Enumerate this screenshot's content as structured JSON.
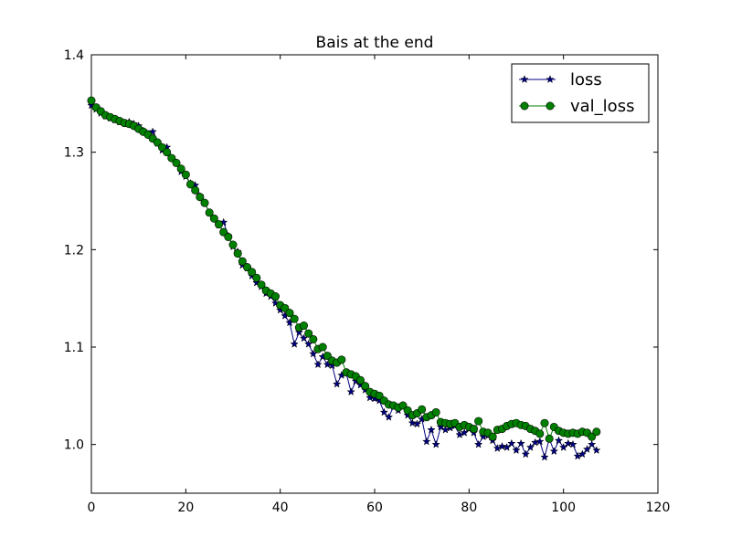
{
  "chart_data": {
    "type": "line",
    "title": "Bais at the end",
    "xlabel": "",
    "ylabel": "",
    "xlim": [
      0,
      120
    ],
    "ylim": [
      0.95,
      1.4
    ],
    "xticks": [
      0,
      20,
      40,
      60,
      80,
      100,
      120
    ],
    "xtick_labels": [
      "0",
      "20",
      "40",
      "60",
      "80",
      "100",
      "120"
    ],
    "yticks": [
      1.0,
      1.1,
      1.2,
      1.3,
      1.4
    ],
    "ytick_labels": [
      "1.0",
      "1.1",
      "1.2",
      "1.3",
      "1.4"
    ],
    "grid": false,
    "legend_position": "top-right",
    "series": [
      {
        "name": "loss",
        "color": "#000080",
        "marker": "star",
        "x": [
          0,
          1,
          2,
          3,
          4,
          5,
          6,
          7,
          8,
          9,
          10,
          11,
          12,
          13,
          14,
          15,
          16,
          17,
          18,
          19,
          20,
          21,
          22,
          23,
          24,
          25,
          26,
          27,
          28,
          29,
          30,
          31,
          32,
          33,
          34,
          35,
          36,
          37,
          38,
          39,
          40,
          41,
          42,
          43,
          44,
          45,
          46,
          47,
          48,
          49,
          50,
          51,
          52,
          53,
          54,
          55,
          56,
          57,
          58,
          59,
          60,
          61,
          62,
          63,
          64,
          65,
          66,
          67,
          68,
          69,
          70,
          71,
          72,
          73,
          74,
          75,
          76,
          77,
          78,
          79,
          80,
          81,
          82,
          83,
          84,
          85,
          86,
          87,
          88,
          89,
          90,
          91,
          92,
          93,
          94,
          95,
          96,
          97,
          98,
          99,
          100,
          101,
          102,
          103,
          104,
          105,
          106,
          107
        ],
        "y": [
          1.348,
          1.344,
          1.34,
          1.337,
          1.335,
          1.333,
          1.331,
          1.33,
          1.331,
          1.329,
          1.327,
          1.322,
          1.319,
          1.321,
          1.309,
          1.302,
          1.305,
          1.294,
          1.289,
          1.28,
          1.275,
          1.268,
          1.266,
          1.255,
          1.248,
          1.238,
          1.232,
          1.225,
          1.228,
          1.214,
          1.203,
          1.198,
          1.184,
          1.181,
          1.173,
          1.166,
          1.162,
          1.155,
          1.152,
          1.145,
          1.138,
          1.132,
          1.125,
          1.103,
          1.115,
          1.109,
          1.103,
          1.093,
          1.082,
          1.09,
          1.082,
          1.081,
          1.062,
          1.071,
          1.073,
          1.054,
          1.065,
          1.061,
          1.056,
          1.048,
          1.047,
          1.045,
          1.033,
          1.028,
          1.039,
          1.035,
          1.04,
          1.03,
          1.022,
          1.021,
          1.026,
          1.003,
          1.015,
          1.0,
          1.018,
          1.015,
          1.017,
          1.019,
          1.01,
          1.012,
          1.016,
          1.012,
          1.0,
          1.008,
          1.009,
          1.004,
          0.996,
          0.998,
          0.997,
          1.001,
          0.994,
          1.001,
          0.99,
          0.997,
          1.002,
          1.003,
          0.987,
          1.006,
          0.993,
          1.004,
          0.997,
          1.001,
          1.0,
          0.988,
          0.99,
          0.995,
          1.0,
          0.994
        ]
      },
      {
        "name": "val_loss",
        "color": "#008000",
        "marker": "circle",
        "x": [
          0,
          1,
          2,
          3,
          4,
          5,
          6,
          7,
          8,
          9,
          10,
          11,
          12,
          13,
          14,
          15,
          16,
          17,
          18,
          19,
          20,
          21,
          22,
          23,
          24,
          25,
          26,
          27,
          28,
          29,
          30,
          31,
          32,
          33,
          34,
          35,
          36,
          37,
          38,
          39,
          40,
          41,
          42,
          43,
          44,
          45,
          46,
          47,
          48,
          49,
          50,
          51,
          52,
          53,
          54,
          55,
          56,
          57,
          58,
          59,
          60,
          61,
          62,
          63,
          64,
          65,
          66,
          67,
          68,
          69,
          70,
          71,
          72,
          73,
          74,
          75,
          76,
          77,
          78,
          79,
          80,
          81,
          82,
          83,
          84,
          85,
          86,
          87,
          88,
          89,
          90,
          91,
          92,
          93,
          94,
          95,
          96,
          97,
          98,
          99,
          100,
          101,
          102,
          103,
          104,
          105,
          106,
          107
        ],
        "y": [
          1.353,
          1.346,
          1.342,
          1.338,
          1.336,
          1.334,
          1.332,
          1.33,
          1.329,
          1.327,
          1.324,
          1.321,
          1.318,
          1.314,
          1.31,
          1.305,
          1.3,
          1.294,
          1.289,
          1.283,
          1.277,
          1.267,
          1.261,
          1.254,
          1.248,
          1.238,
          1.232,
          1.226,
          1.218,
          1.213,
          1.205,
          1.196,
          1.188,
          1.182,
          1.177,
          1.171,
          1.164,
          1.158,
          1.155,
          1.152,
          1.143,
          1.14,
          1.135,
          1.129,
          1.12,
          1.122,
          1.114,
          1.108,
          1.098,
          1.1,
          1.091,
          1.086,
          1.084,
          1.087,
          1.074,
          1.072,
          1.07,
          1.066,
          1.06,
          1.054,
          1.052,
          1.05,
          1.045,
          1.041,
          1.04,
          1.038,
          1.04,
          1.035,
          1.03,
          1.032,
          1.036,
          1.028,
          1.03,
          1.033,
          1.023,
          1.022,
          1.021,
          1.022,
          1.018,
          1.02,
          1.018,
          1.016,
          1.024,
          1.013,
          1.012,
          1.008,
          1.015,
          1.016,
          1.019,
          1.021,
          1.022,
          1.02,
          1.019,
          1.016,
          1.014,
          1.011,
          1.022,
          1.006,
          1.018,
          1.014,
          1.012,
          1.011,
          1.012,
          1.011,
          1.013,
          1.012,
          1.008,
          1.013
        ]
      }
    ]
  }
}
